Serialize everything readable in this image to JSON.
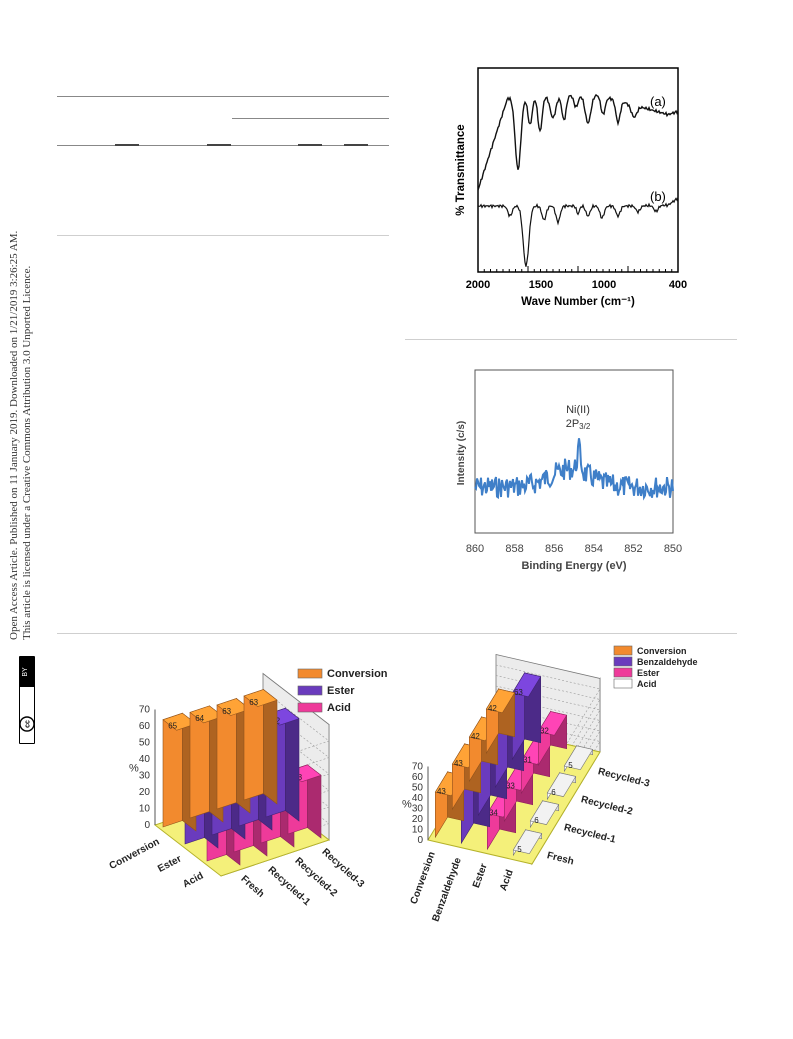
{
  "sidebar": {
    "line1": "Open Access Article. Published on 11 January 2019. Downloaded on 1/21/2019 3:26:25 AM.",
    "line2": "This article is licensed under a Creative Commons Attribution 3.0 Unported Licence.",
    "badge_cc": "cc",
    "badge_by": "BY"
  },
  "ftir": {
    "ylabel": "% Transmittance",
    "xlabel": "Wave Number (cm⁻¹)",
    "ticks": [
      "2000",
      "1500",
      "1000",
      "400"
    ],
    "label_a": "(a)",
    "label_b": "(b)"
  },
  "xps": {
    "ylabel": "Intensity (c/s)",
    "xlabel": "Binding Energy (eV)",
    "ticks": [
      "860",
      "858",
      "856",
      "854",
      "852",
      "850"
    ],
    "peak_label_1": "Ni(II)",
    "peak_label_2": "2P",
    "peak_label_sub": "3/2"
  },
  "chart_data": [
    {
      "type": "bar",
      "series": [
        {
          "name": "Conversion",
          "values": [
            65,
            64,
            63,
            63
          ],
          "color": "#f28a2e"
        },
        {
          "name": "Ester",
          "values": [
            63,
            63,
            62,
            62
          ],
          "color": "#6a3bbd"
        },
        {
          "name": "Acid",
          "values": [
            37,
            33,
            38,
            38
          ],
          "color": "#ee3a9a"
        }
      ],
      "categories": [
        "Fresh",
        "Recycled-1",
        "Recycled-2",
        "Recycled-3"
      ],
      "row_labels": [
        "Conversion",
        "Ester",
        "Acid"
      ],
      "ylabel": "%",
      "ylim": [
        0,
        70
      ],
      "yticks": [
        "0",
        "10",
        "20",
        "30",
        "40",
        "50",
        "60",
        "70"
      ],
      "legend": "top-right"
    },
    {
      "type": "bar",
      "series": [
        {
          "name": "Conversion",
          "values": [
            43,
            43,
            42,
            42
          ],
          "color": "#f28a2e"
        },
        {
          "name": "Benzaldehyde",
          "values": [
            61,
            61,
            63,
            63
          ],
          "color": "#6a3bbd"
        },
        {
          "name": "Ester",
          "values": [
            34,
            33,
            31,
            32
          ],
          "color": "#ee3a9a"
        },
        {
          "name": "Acid",
          "values": [
            5,
            6,
            6,
            5
          ],
          "color": "#ffffff"
        }
      ],
      "categories": [
        "Fresh",
        "Recycled-1",
        "Recycled-2",
        "Recycled-3"
      ],
      "row_labels": [
        "Conversion",
        "Benzaldehyde",
        "Ester",
        "Acid"
      ],
      "ylabel": "%",
      "ylim": [
        0,
        70
      ],
      "yticks": [
        "0",
        "10",
        "20",
        "30",
        "40",
        "50",
        "60",
        "70"
      ],
      "legend": "top-right"
    }
  ]
}
